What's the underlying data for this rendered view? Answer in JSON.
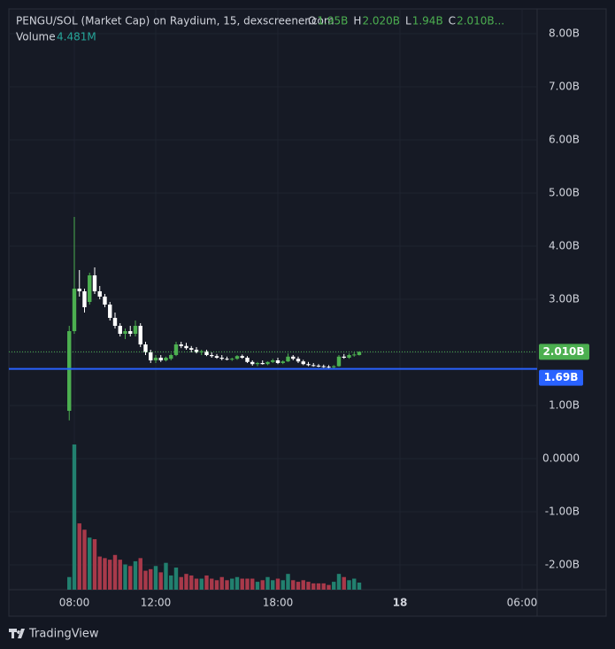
{
  "chart_data": {
    "type": "candlestick",
    "title": "PENGU/SOL (Market Cap) on Raydium, 15, dexscreener.com",
    "ohlc_header": [
      {
        "key": "O",
        "text": "1.95B"
      },
      {
        "key": "H",
        "text": "2.020B"
      },
      {
        "key": "L",
        "text": "1.94B"
      },
      {
        "key": "C",
        "text": "2.010B..."
      }
    ],
    "volume_label": "Volume",
    "volume_text": "4.481M",
    "up_color": "#4caf50",
    "down_color": "#ffffff",
    "volume_up_color": "#22806f",
    "volume_down_color": "#a8394a",
    "grid": true,
    "x": [
      7.75,
      8,
      8.25,
      8.5,
      8.75,
      9,
      9.25,
      9.5,
      9.75,
      10,
      10.25,
      10.5,
      10.75,
      11,
      11.25,
      11.5,
      11.75,
      12,
      12.25,
      12.5,
      12.75,
      13,
      13.25,
      13.5,
      13.75,
      14,
      14.25,
      14.5,
      14.75,
      15,
      15.25,
      15.5,
      15.75,
      16,
      16.25,
      16.5,
      16.75,
      17,
      17.25,
      17.5,
      17.75,
      18,
      18.25,
      18.5,
      18.75,
      19,
      19.25,
      19.5,
      19.75,
      20,
      20.25,
      20.5,
      20.75,
      21,
      21.25,
      21.5,
      21.75,
      22
    ],
    "open": [
      0.9,
      2.4,
      3.2,
      3.15,
      2.95,
      3.45,
      3.15,
      3.05,
      2.9,
      2.65,
      2.5,
      2.35,
      2.4,
      2.35,
      2.5,
      2.15,
      2.0,
      1.85,
      1.9,
      1.85,
      1.88,
      1.95,
      2.15,
      2.12,
      2.08,
      2.05,
      2.0,
      2.02,
      1.95,
      1.93,
      1.9,
      1.88,
      1.87,
      1.88,
      1.93,
      1.9,
      1.82,
      1.78,
      1.8,
      1.78,
      1.82,
      1.85,
      1.8,
      1.83,
      1.92,
      1.88,
      1.83,
      1.78,
      1.76,
      1.75,
      1.74,
      1.73,
      1.72,
      1.74,
      1.92,
      1.9,
      1.95,
      1.95
    ],
    "high": [
      2.5,
      4.55,
      3.55,
      3.2,
      3.5,
      3.6,
      3.25,
      3.1,
      2.95,
      2.75,
      2.55,
      2.45,
      2.5,
      2.6,
      2.55,
      2.2,
      2.05,
      1.95,
      1.95,
      1.92,
      1.98,
      2.2,
      2.2,
      2.18,
      2.12,
      2.1,
      2.05,
      2.05,
      2.0,
      1.97,
      1.95,
      1.92,
      1.9,
      1.95,
      1.96,
      1.93,
      1.85,
      1.82,
      1.85,
      1.83,
      1.88,
      1.9,
      1.85,
      1.98,
      1.95,
      1.92,
      1.86,
      1.82,
      1.8,
      1.78,
      1.77,
      1.76,
      1.76,
      1.95,
      1.97,
      1.98,
      2.0,
      2.02
    ],
    "low": [
      0.72,
      2.35,
      3.05,
      2.75,
      2.9,
      3.1,
      3.0,
      2.85,
      2.6,
      2.45,
      2.3,
      2.25,
      2.3,
      2.3,
      2.1,
      1.95,
      1.8,
      1.8,
      1.82,
      1.83,
      1.85,
      1.93,
      2.08,
      2.05,
      2.0,
      1.98,
      1.95,
      1.93,
      1.9,
      1.88,
      1.85,
      1.85,
      1.84,
      1.86,
      1.88,
      1.8,
      1.75,
      1.74,
      1.77,
      1.76,
      1.8,
      1.78,
      1.78,
      1.82,
      1.85,
      1.8,
      1.76,
      1.74,
      1.73,
      1.72,
      1.71,
      1.7,
      1.7,
      1.73,
      1.88,
      1.88,
      1.92,
      1.94
    ],
    "close": [
      2.4,
      3.2,
      3.15,
      2.85,
      3.45,
      3.15,
      3.05,
      2.9,
      2.65,
      2.5,
      2.35,
      2.4,
      2.35,
      2.5,
      2.15,
      2.0,
      1.85,
      1.9,
      1.85,
      1.9,
      1.95,
      2.15,
      2.12,
      2.08,
      2.05,
      2.0,
      2.02,
      1.95,
      1.93,
      1.9,
      1.88,
      1.87,
      1.88,
      1.93,
      1.9,
      1.82,
      1.78,
      1.8,
      1.78,
      1.82,
      1.85,
      1.8,
      1.83,
      1.92,
      1.88,
      1.83,
      1.78,
      1.76,
      1.75,
      1.74,
      1.73,
      1.72,
      1.74,
      1.92,
      1.9,
      1.95,
      1.96,
      2.01
    ],
    "volume": [
      8,
      92,
      42,
      38,
      33,
      32,
      21,
      20,
      19,
      22,
      19,
      16,
      15,
      18,
      20,
      12,
      13,
      15,
      11,
      17,
      9,
      14,
      8,
      10,
      9,
      7,
      7,
      9,
      7,
      6,
      8,
      6,
      7,
      8,
      7,
      7,
      7,
      5,
      6,
      8,
      6,
      7,
      6,
      10,
      6,
      5,
      6,
      5,
      4,
      4,
      4,
      3,
      5,
      10,
      8,
      6,
      7,
      4.481
    ],
    "xlim": [
      4.783,
      30.74
    ],
    "xticks": [
      {
        "value": 8,
        "label": "08:00"
      },
      {
        "value": 12,
        "label": "12:00"
      },
      {
        "value": 18,
        "label": "18:00"
      },
      {
        "value": 24,
        "label": "18"
      },
      {
        "value": 30,
        "label": "06:00"
      }
    ],
    "ylim": [
      -2.467,
      8.467
    ],
    "yticks": [
      {
        "value": 8,
        "label": "8.00B"
      },
      {
        "value": 7,
        "label": "7.00B"
      },
      {
        "value": 6,
        "label": "6.00B"
      },
      {
        "value": 5,
        "label": "5.00B"
      },
      {
        "value": 4,
        "label": "4.00B"
      },
      {
        "value": 3,
        "label": "3.00B"
      },
      {
        "value": 2,
        "label": "2.00B"
      },
      {
        "value": 1,
        "label": "1.00B"
      },
      {
        "value": 0,
        "label": "0.0000"
      },
      {
        "value": -1,
        "label": "-1.00B"
      },
      {
        "value": -2,
        "label": "-2.00B"
      }
    ],
    "last_price": {
      "value": 2.01,
      "label": "2.010B",
      "color": "#4caf50"
    },
    "price_line": {
      "value": 1.69,
      "label": "1.69B",
      "color": "#2962ff"
    },
    "branding": "TradingView"
  }
}
